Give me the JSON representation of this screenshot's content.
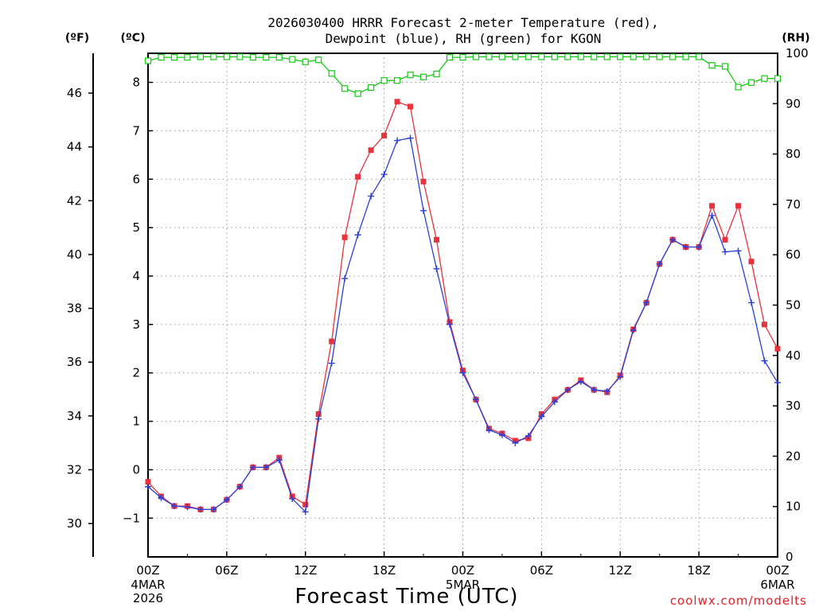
{
  "chart_data": {
    "type": "line",
    "title_lines": [
      "2026030400 HRRR Forecast 2-meter Temperature (red),",
      "Dewpoint (blue), RH (green) for KGON"
    ],
    "unit_labels": {
      "fahrenheit": "(ºF)",
      "celsius": "(ºC)",
      "rh": "(RH)"
    },
    "xlabel": "Forecast Time (UTC)",
    "credit": "coolwx.com/modelts",
    "x_ticks": [
      {
        "label": "00Z",
        "hour": 0
      },
      {
        "label": "06Z",
        "hour": 6
      },
      {
        "label": "12Z",
        "hour": 12
      },
      {
        "label": "18Z",
        "hour": 18
      },
      {
        "label": "00Z",
        "hour": 24
      },
      {
        "label": "06Z",
        "hour": 30
      },
      {
        "label": "12Z",
        "hour": 36
      },
      {
        "label": "18Z",
        "hour": 42
      },
      {
        "label": "00Z",
        "hour": 48
      }
    ],
    "date_labels": [
      {
        "hour": 0,
        "lines": [
          "4MAR",
          "2026"
        ]
      },
      {
        "hour": 24,
        "lines": [
          "5MAR"
        ]
      },
      {
        "hour": 48,
        "lines": [
          "6MAR"
        ]
      }
    ],
    "xlim_hours": [
      0,
      48
    ],
    "celsius_axis": {
      "ylim": [
        -1.8,
        8.6
      ],
      "ticks": [
        -1,
        0,
        1,
        2,
        3,
        4,
        5,
        6,
        7,
        8
      ]
    },
    "fahrenheit_axis": {
      "ticks": [
        30,
        32,
        34,
        36,
        38,
        40,
        42,
        44,
        46
      ]
    },
    "rh_axis": {
      "ylim": [
        0,
        100
      ],
      "ticks": [
        0,
        10,
        20,
        30,
        40,
        50,
        60,
        70,
        80,
        90,
        100
      ]
    },
    "grid": true,
    "colors": {
      "temperature": "#e8323c",
      "dewpoint": "#2a3fd8",
      "rh": "#16c916",
      "credit": "#e0202a"
    },
    "series": [
      {
        "key": "temperature",
        "name": "Temperature",
        "unit": "°C",
        "marker": "filled-square",
        "hours": [
          0,
          1,
          2,
          3,
          4,
          5,
          6,
          7,
          8,
          9,
          10,
          11,
          12,
          13,
          14,
          15,
          16,
          17,
          18,
          19,
          20,
          21,
          22,
          23,
          24,
          25,
          26,
          27,
          28,
          29,
          30,
          31,
          32,
          33,
          34,
          35,
          36,
          37,
          38,
          39,
          40,
          41,
          42,
          43,
          44,
          45,
          46,
          47,
          48
        ],
        "values": [
          -0.25,
          -0.55,
          -0.75,
          -0.75,
          -0.82,
          -0.82,
          -0.62,
          -0.35,
          0.05,
          0.05,
          0.25,
          -0.55,
          -0.72,
          1.15,
          2.65,
          4.8,
          6.05,
          6.6,
          6.9,
          7.6,
          7.5,
          5.95,
          4.75,
          3.05,
          2.05,
          1.45,
          0.85,
          0.75,
          0.6,
          0.65,
          1.15,
          1.45,
          1.65,
          1.85,
          1.65,
          1.6,
          1.95,
          2.9,
          3.45,
          4.25,
          4.75,
          4.6,
          4.6,
          5.45,
          4.75,
          5.45,
          4.3,
          3.0,
          2.5
        ]
      },
      {
        "key": "dewpoint",
        "name": "Dewpoint",
        "unit": "°C",
        "marker": "plus",
        "hours": [
          0,
          1,
          2,
          3,
          4,
          5,
          6,
          7,
          8,
          9,
          10,
          11,
          12,
          13,
          14,
          15,
          16,
          17,
          18,
          19,
          20,
          21,
          22,
          23,
          24,
          25,
          26,
          27,
          28,
          29,
          30,
          31,
          32,
          33,
          34,
          35,
          36,
          37,
          38,
          39,
          40,
          41,
          42,
          43,
          44,
          45,
          46,
          47,
          48
        ],
        "values": [
          -0.35,
          -0.58,
          -0.75,
          -0.77,
          -0.82,
          -0.82,
          -0.62,
          -0.35,
          0.05,
          0.05,
          0.2,
          -0.6,
          -0.87,
          1.05,
          2.2,
          3.95,
          4.85,
          5.65,
          6.1,
          6.8,
          6.85,
          5.35,
          4.15,
          3.0,
          2.0,
          1.45,
          0.82,
          0.72,
          0.55,
          0.7,
          1.1,
          1.4,
          1.65,
          1.82,
          1.65,
          1.62,
          1.92,
          2.88,
          3.45,
          4.25,
          4.75,
          4.6,
          4.6,
          5.25,
          4.5,
          4.52,
          3.45,
          2.25,
          1.8
        ]
      },
      {
        "key": "rh",
        "name": "RH",
        "unit": "%",
        "marker": "open-square",
        "hours": [
          0,
          1,
          2,
          3,
          4,
          5,
          6,
          7,
          8,
          9,
          10,
          11,
          12,
          13,
          14,
          15,
          16,
          17,
          18,
          19,
          20,
          21,
          22,
          23,
          24,
          25,
          26,
          27,
          28,
          29,
          30,
          31,
          32,
          33,
          34,
          35,
          36,
          37,
          38,
          39,
          40,
          41,
          42,
          43,
          44,
          45,
          46,
          47,
          48
        ],
        "values": [
          98.5,
          99.2,
          99.2,
          99.2,
          99.3,
          99.3,
          99.3,
          99.3,
          99.2,
          99.2,
          99.2,
          98.8,
          98.3,
          98.7,
          96.0,
          93.0,
          92.0,
          93.2,
          94.6,
          94.6,
          95.7,
          95.3,
          95.9,
          99.2,
          99.2,
          99.3,
          99.3,
          99.3,
          99.3,
          99.3,
          99.3,
          99.3,
          99.3,
          99.3,
          99.3,
          99.3,
          99.3,
          99.3,
          99.3,
          99.3,
          99.3,
          99.3,
          99.3,
          97.6,
          97.4,
          93.3,
          94.2,
          95.0,
          95.0
        ]
      }
    ]
  }
}
